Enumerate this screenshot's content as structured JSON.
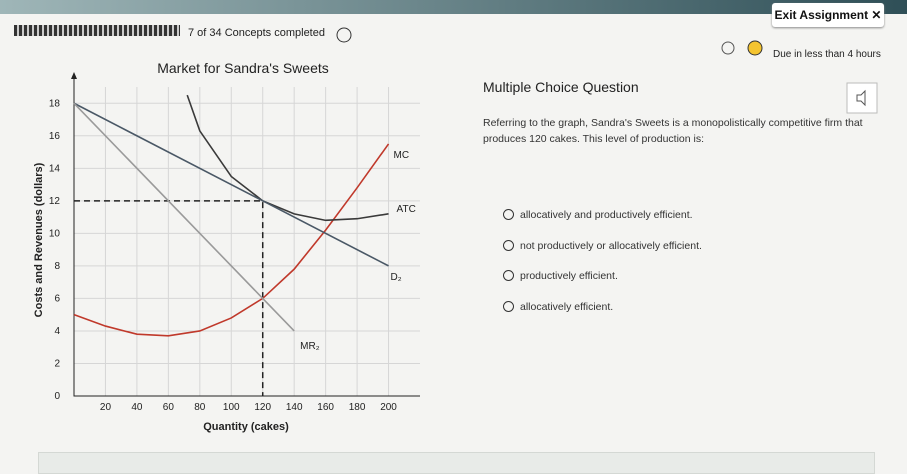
{
  "header": {
    "exit_button": "Exit Assignment",
    "progress": "7 of 34 Concepts completed",
    "due": "Due in less than 4 hours"
  },
  "chart_data": {
    "type": "line",
    "title": "Market for Sandra's Sweets",
    "x_label": "Quantity (cakes)",
    "y_label": "Costs and Revenues (dollars)",
    "xlim": [
      0,
      220
    ],
    "ylim": [
      0,
      19
    ],
    "xticks": [
      20,
      40,
      60,
      80,
      100,
      120,
      140,
      160,
      180,
      200
    ],
    "yticks": [
      0,
      2,
      4,
      6,
      8,
      10,
      12,
      14,
      16,
      18
    ],
    "grid": true,
    "series": [
      {
        "name": "MC",
        "color": "#c0392b",
        "x": [
          0,
          20,
          40,
          60,
          80,
          100,
          120,
          140,
          160,
          180,
          200
        ],
        "values": [
          5,
          4.3,
          3.8,
          3.7,
          4,
          4.8,
          6,
          7.8,
          10.2,
          12.8,
          15.5
        ]
      },
      {
        "name": "ATC",
        "color": "#3a3a3a",
        "x": [
          72,
          80,
          100,
          120,
          140,
          160,
          180,
          200
        ],
        "values": [
          18.5,
          16.3,
          13.5,
          12,
          11.2,
          10.8,
          10.9,
          11.2
        ]
      },
      {
        "name": "D₂",
        "color": "#4a5866",
        "x": [
          0,
          120,
          200
        ],
        "values": [
          18,
          12,
          8
        ]
      },
      {
        "name": "MR₂",
        "color": "#9a9a9a",
        "x": [
          0,
          120,
          140
        ],
        "values": [
          18,
          6,
          4
        ]
      }
    ],
    "guide": {
      "x": 120,
      "y": 12
    }
  },
  "question": {
    "heading": "Multiple Choice Question",
    "prompt": "Referring to the graph, Sandra's Sweets is a monopolistically competitive firm that produces 120 cakes. This level of production is:",
    "options": [
      "allocatively and productively efficient.",
      "not productively or allocatively efficient.",
      "productively efficient.",
      "allocatively efficient."
    ]
  }
}
